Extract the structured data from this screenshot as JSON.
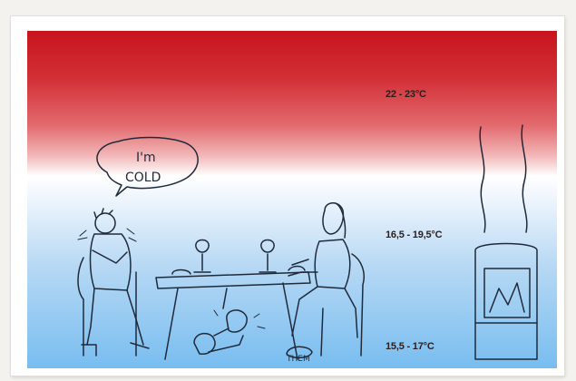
{
  "temperatures": {
    "top": "22 - 23°C",
    "middle": "16,5 - 19,5°C",
    "bottom": "15,5 - 17°C"
  },
  "speech_bubble": {
    "line1": "I'm",
    "line2": "COLD"
  },
  "floor_label": "THEM",
  "colors": {
    "warm": "#c8141c",
    "neutral": "#ffffff",
    "cool": "#78bdf0",
    "ink": "#1f2a3a"
  }
}
